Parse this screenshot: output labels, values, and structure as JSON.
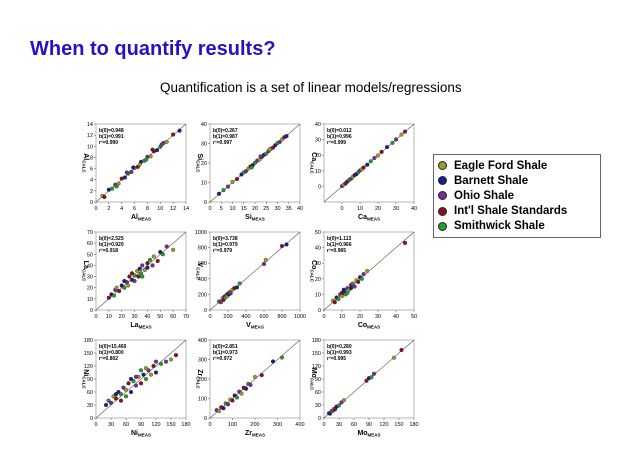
{
  "slide": {
    "title": "When to quantify results?",
    "subtitle": "Quantification is a set of linear models/regressions"
  },
  "legend": [
    {
      "label": "Eagle Ford Shale",
      "color": "#9a9a2a"
    },
    {
      "label": "Barnett Shale",
      "color": "#1a1f8a"
    },
    {
      "label": "Ohio Shale",
      "color": "#7a2a92"
    },
    {
      "label": "Int'l Shale Standards",
      "color": "#8a1020"
    },
    {
      "label": "Smithwick Shale",
      "color": "#2a9a2a"
    }
  ],
  "chart_data": [
    {
      "type": "scatter",
      "xlabel": "Al",
      "xlabel_sub": "MEAS",
      "ylabel": "Al",
      "ylabel_sub": "CALC",
      "stats": [
        "b(0)=0.948",
        "b(1)=0.991",
        "r²=0.990"
      ],
      "xlim": [
        0,
        14
      ],
      "ylim": [
        0,
        14
      ],
      "xticks": [
        0,
        2,
        4,
        6,
        8,
        10,
        12,
        14
      ],
      "yticks": [
        0,
        2,
        4,
        6,
        8,
        10,
        12,
        14
      ],
      "points": [
        [
          1,
          1.1
        ],
        [
          1.3,
          0.9
        ],
        [
          2,
          2.2
        ],
        [
          2.5,
          2.4
        ],
        [
          3,
          3.1
        ],
        [
          3.5,
          3.3
        ],
        [
          4,
          4.2
        ],
        [
          4.5,
          4.4
        ],
        [
          5,
          5.1
        ],
        [
          5.5,
          5.4
        ],
        [
          6,
          6.1
        ],
        [
          6.5,
          6.3
        ],
        [
          7,
          7.2
        ],
        [
          7.5,
          7.4
        ],
        [
          8,
          8.1
        ],
        [
          8.5,
          8.2
        ],
        [
          9,
          9.1
        ],
        [
          9.5,
          9.3
        ],
        [
          10,
          9.9
        ],
        [
          10.5,
          10.6
        ],
        [
          11,
          10.8
        ],
        [
          12,
          12.1
        ],
        [
          13,
          12.8
        ],
        [
          3.2,
          2.8
        ],
        [
          4.8,
          5.3
        ],
        [
          6.8,
          6.7
        ],
        [
          8.8,
          9.4
        ],
        [
          5.8,
          6.2
        ],
        [
          7.8,
          7.6
        ],
        [
          10.2,
          10.3
        ]
      ]
    },
    {
      "type": "scatter",
      "xlabel": "Si",
      "xlabel_sub": "MEAS",
      "ylabel": "Si",
      "ylabel_sub": "CALC",
      "stats": [
        "b(0)=0.267",
        "b(1)=0.987",
        "r²=0.997"
      ],
      "xlim": [
        0,
        40
      ],
      "ylim": [
        0,
        40
      ],
      "xticks": [
        0,
        5,
        10,
        15,
        20,
        25,
        30,
        35,
        40
      ],
      "yticks": [
        0,
        10,
        20,
        30,
        40
      ],
      "points": [
        [
          4,
          4.2
        ],
        [
          6,
          6.1
        ],
        [
          8,
          7.9
        ],
        [
          10,
          10.3
        ],
        [
          12,
          11.8
        ],
        [
          14,
          14.1
        ],
        [
          15,
          15.2
        ],
        [
          16,
          15.8
        ],
        [
          17,
          17.1
        ],
        [
          18,
          18.2
        ],
        [
          19,
          18.9
        ],
        [
          20,
          20.1
        ],
        [
          21,
          21.2
        ],
        [
          22,
          21.8
        ],
        [
          23,
          23.1
        ],
        [
          24,
          24.2
        ],
        [
          25,
          24.8
        ],
        [
          26,
          26.1
        ],
        [
          27,
          27.2
        ],
        [
          28,
          27.9
        ],
        [
          29,
          29.1
        ],
        [
          30,
          30.2
        ],
        [
          31,
          30.8
        ],
        [
          32,
          32.1
        ],
        [
          33,
          33.2
        ],
        [
          34,
          33.8
        ],
        [
          18.5,
          17.7
        ],
        [
          22.5,
          23.4
        ],
        [
          26.5,
          27
        ]
      ]
    },
    {
      "type": "scatter",
      "xlabel": "Ca",
      "xlabel_sub": "MEAS",
      "ylabel": "Ca",
      "ylabel_sub": "CALC",
      "stats": [
        "b(0)=0.012",
        "b(1)=0.996",
        "r²=0.999"
      ],
      "xlim": [
        -10,
        40
      ],
      "ylim": [
        -10,
        40
      ],
      "xticks": [
        0,
        10,
        20,
        30,
        40
      ],
      "yticks": [
        0,
        10,
        20,
        30,
        40
      ],
      "points": [
        [
          0,
          0.2
        ],
        [
          1,
          1.1
        ],
        [
          2,
          1.9
        ],
        [
          3,
          3.1
        ],
        [
          4,
          4.2
        ],
        [
          5,
          4.9
        ],
        [
          6,
          6.1
        ],
        [
          7,
          7.2
        ],
        [
          8,
          7.9
        ],
        [
          9,
          9.1
        ],
        [
          10,
          10.2
        ],
        [
          11,
          11
        ],
        [
          12,
          12.1
        ],
        [
          14,
          13.9
        ],
        [
          16,
          16.1
        ],
        [
          18,
          18.2
        ],
        [
          20,
          19.8
        ],
        [
          22,
          22.1
        ],
        [
          25,
          25.2
        ],
        [
          28,
          27.9
        ],
        [
          30,
          30.1
        ],
        [
          33,
          33.2
        ],
        [
          35,
          35.1
        ]
      ]
    },
    {
      "type": "scatter",
      "xlabel": "La",
      "xlabel_sub": "MEAS",
      "ylabel": "La",
      "ylabel_sub": "CALC",
      "stats": [
        "b(0)=2.525",
        "b(1)=0.920",
        "r²=0.918"
      ],
      "xlim": [
        0,
        70
      ],
      "ylim": [
        0,
        70
      ],
      "xticks": [
        0,
        10,
        20,
        30,
        40,
        50,
        60,
        70
      ],
      "yticks": [
        0,
        10,
        20,
        30,
        40,
        50,
        60,
        70
      ],
      "points": [
        [
          10,
          11
        ],
        [
          12,
          14
        ],
        [
          14,
          13
        ],
        [
          15,
          18
        ],
        [
          16,
          20
        ],
        [
          18,
          17
        ],
        [
          20,
          22
        ],
        [
          22,
          20
        ],
        [
          24,
          25
        ],
        [
          25,
          22
        ],
        [
          26,
          30
        ],
        [
          28,
          27
        ],
        [
          30,
          31
        ],
        [
          30,
          26
        ],
        [
          32,
          35
        ],
        [
          33,
          30
        ],
        [
          34,
          37
        ],
        [
          35,
          33
        ],
        [
          36,
          40
        ],
        [
          38,
          36
        ],
        [
          40,
          42
        ],
        [
          40,
          38
        ],
        [
          42,
          45
        ],
        [
          44,
          40
        ],
        [
          45,
          48
        ],
        [
          48,
          44
        ],
        [
          50,
          52
        ],
        [
          52,
          50
        ],
        [
          55,
          57
        ],
        [
          60,
          54
        ],
        [
          28,
          33
        ],
        [
          22,
          26
        ],
        [
          36,
          30
        ]
      ]
    },
    {
      "type": "scatter",
      "xlabel": "V",
      "xlabel_sub": "MEAS",
      "ylabel": "V",
      "ylabel_sub": "CALC",
      "stats": [
        "b(0)=3.738",
        "b(1)=0.979",
        "r²=0.979"
      ],
      "xlim": [
        0,
        1000
      ],
      "ylim": [
        0,
        1000
      ],
      "xticks": [
        0,
        200,
        400,
        600,
        800,
        1000
      ],
      "yticks": [
        0,
        200,
        400,
        600,
        800,
        1000
      ],
      "points": [
        [
          100,
          110
        ],
        [
          120,
          100
        ],
        [
          140,
          150
        ],
        [
          150,
          130
        ],
        [
          160,
          170
        ],
        [
          170,
          160
        ],
        [
          180,
          190
        ],
        [
          190,
          175
        ],
        [
          200,
          210
        ],
        [
          210,
          200
        ],
        [
          220,
          230
        ],
        [
          230,
          215
        ],
        [
          250,
          260
        ],
        [
          270,
          280
        ],
        [
          300,
          290
        ],
        [
          330,
          340
        ],
        [
          600,
          590
        ],
        [
          620,
          640
        ],
        [
          800,
          820
        ],
        [
          850,
          840
        ]
      ]
    },
    {
      "type": "scatter",
      "xlabel": "Co",
      "xlabel_sub": "MEAS",
      "ylabel": "Co",
      "ylabel_sub": "CALC",
      "stats": [
        "b(0)=1.113",
        "b(1)=0.966",
        "r²=0.965"
      ],
      "xlim": [
        0,
        50
      ],
      "ylim": [
        0,
        50
      ],
      "xticks": [
        0,
        10,
        20,
        30,
        40,
        50
      ],
      "yticks": [
        0,
        10,
        20,
        30,
        40,
        50
      ],
      "points": [
        [
          5,
          6
        ],
        [
          6,
          5
        ],
        [
          7,
          8
        ],
        [
          8,
          7
        ],
        [
          9,
          10
        ],
        [
          10,
          9
        ],
        [
          10,
          11
        ],
        [
          11,
          12
        ],
        [
          12,
          10
        ],
        [
          13,
          14
        ],
        [
          14,
          13
        ],
        [
          15,
          16
        ],
        [
          15,
          14
        ],
        [
          16,
          17
        ],
        [
          17,
          15
        ],
        [
          18,
          19
        ],
        [
          19,
          18
        ],
        [
          20,
          21
        ],
        [
          21,
          20
        ],
        [
          22,
          23
        ],
        [
          24,
          25
        ],
        [
          45,
          43
        ],
        [
          11,
          13
        ],
        [
          13,
          11
        ]
      ]
    },
    {
      "type": "scatter",
      "xlabel": "Ni",
      "xlabel_sub": "MEAS",
      "ylabel": "Ni",
      "ylabel_sub": "CALC",
      "stats": [
        "b(0)=15.460",
        "b(1)=0.800",
        "r²=0.802"
      ],
      "xlim": [
        0,
        180
      ],
      "ylim": [
        0,
        180
      ],
      "xticks": [
        0,
        30,
        60,
        90,
        120,
        150,
        180
      ],
      "yticks": [
        0,
        30,
        60,
        90,
        120,
        150,
        180
      ],
      "points": [
        [
          20,
          30
        ],
        [
          25,
          40
        ],
        [
          30,
          35
        ],
        [
          35,
          50
        ],
        [
          40,
          45
        ],
        [
          45,
          60
        ],
        [
          50,
          55
        ],
        [
          55,
          70
        ],
        [
          60,
          65
        ],
        [
          65,
          80
        ],
        [
          70,
          60
        ],
        [
          75,
          85
        ],
        [
          80,
          75
        ],
        [
          85,
          95
        ],
        [
          90,
          80
        ],
        [
          95,
          100
        ],
        [
          100,
          90
        ],
        [
          105,
          110
        ],
        [
          110,
          100
        ],
        [
          115,
          120
        ],
        [
          120,
          105
        ],
        [
          130,
          125
        ],
        [
          140,
          130
        ],
        [
          150,
          135
        ],
        [
          160,
          145
        ],
        [
          40,
          55
        ],
        [
          60,
          50
        ],
        [
          80,
          95
        ],
        [
          100,
          115
        ],
        [
          50,
          40
        ],
        [
          70,
          90
        ],
        [
          90,
          110
        ],
        [
          120,
          130
        ]
      ]
    },
    {
      "type": "scatter",
      "xlabel": "Zr",
      "xlabel_sub": "MEAS",
      "ylabel": "Zr",
      "ylabel_sub": "CALC",
      "stats": [
        "b(0)=2.851",
        "b(1)=0.973",
        "r²=0.972"
      ],
      "xlim": [
        0,
        400
      ],
      "ylim": [
        0,
        400
      ],
      "xticks": [
        0,
        100,
        200,
        300,
        400
      ],
      "yticks": [
        0,
        100,
        200,
        300,
        400
      ],
      "points": [
        [
          30,
          40
        ],
        [
          40,
          35
        ],
        [
          50,
          55
        ],
        [
          60,
          50
        ],
        [
          70,
          75
        ],
        [
          80,
          70
        ],
        [
          90,
          95
        ],
        [
          100,
          90
        ],
        [
          110,
          115
        ],
        [
          120,
          105
        ],
        [
          130,
          135
        ],
        [
          140,
          125
        ],
        [
          150,
          155
        ],
        [
          160,
          150
        ],
        [
          170,
          175
        ],
        [
          180,
          170
        ],
        [
          200,
          210
        ],
        [
          230,
          220
        ],
        [
          280,
          290
        ],
        [
          320,
          310
        ]
      ]
    },
    {
      "type": "scatter",
      "xlabel": "Mo",
      "xlabel_sub": "MEAS",
      "ylabel": "Mo",
      "ylabel_sub": "CALC",
      "stats": [
        "b(0)=0.280",
        "b(1)=0.993",
        "r²=0.995"
      ],
      "xlim": [
        0,
        180
      ],
      "ylim": [
        0,
        180
      ],
      "xticks": [
        0,
        30,
        60,
        90,
        120,
        150,
        180
      ],
      "yticks": [
        0,
        30,
        60,
        90,
        120,
        150,
        180
      ],
      "points": [
        [
          10,
          11
        ],
        [
          12,
          10
        ],
        [
          15,
          16
        ],
        [
          18,
          17
        ],
        [
          20,
          21
        ],
        [
          22,
          20
        ],
        [
          25,
          26
        ],
        [
          30,
          29
        ],
        [
          35,
          36
        ],
        [
          40,
          41
        ],
        [
          85,
          86
        ],
        [
          90,
          92
        ],
        [
          95,
          94
        ],
        [
          100,
          102
        ],
        [
          140,
          139
        ],
        [
          155,
          157
        ]
      ]
    }
  ]
}
